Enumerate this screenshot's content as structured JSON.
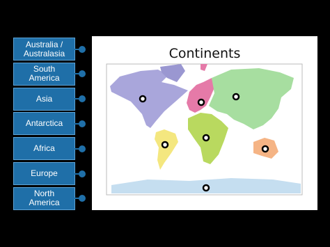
{
  "title": "Continents",
  "labels": [
    "Australia / Australasia",
    "South America",
    "Asia",
    "Antarctica",
    "Africa",
    "Europe",
    "North America"
  ]
}
